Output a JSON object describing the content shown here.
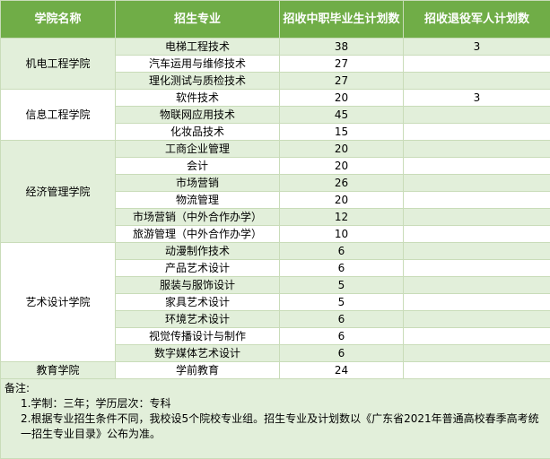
{
  "header": {
    "columns": [
      "学院名称",
      "招生专业",
      "招收中职毕业生计划数",
      "招收退役军人计划数"
    ]
  },
  "groups": [
    {
      "college": "机电工程学院",
      "rows": [
        {
          "major": "电梯工程技术",
          "plan": 38,
          "veteran": 3
        },
        {
          "major": "汽车运用与维修技术",
          "plan": 27
        },
        {
          "major": "理化测试与质检技术",
          "plan": 27
        }
      ]
    },
    {
      "college": "信息工程学院",
      "rows": [
        {
          "major": "软件技术",
          "plan": 20,
          "veteran": 3
        },
        {
          "major": "物联网应用技术",
          "plan": 45
        },
        {
          "major": "化妆品技术",
          "plan": 15
        }
      ]
    },
    {
      "college": "经济管理学院",
      "rows": [
        {
          "major": "工商企业管理",
          "plan": 20
        },
        {
          "major": "会计",
          "plan": 20
        },
        {
          "major": "市场营销",
          "plan": 26
        },
        {
          "major": "物流管理",
          "plan": 20
        },
        {
          "major": "市场营销（中外合作办学）",
          "plan": 12
        },
        {
          "major": "旅游管理（中外合作办学）",
          "plan": 10
        }
      ]
    },
    {
      "college": "艺术设计学院",
      "rows": [
        {
          "major": "动漫制作技术",
          "plan": 6
        },
        {
          "major": "产品艺术设计",
          "plan": 6
        },
        {
          "major": "服装与服饰设计",
          "plan": 5
        },
        {
          "major": "家具艺术设计",
          "plan": 5
        },
        {
          "major": "环境艺术设计",
          "plan": 6
        },
        {
          "major": "视觉传播设计与制作",
          "plan": 6
        },
        {
          "major": "数字媒体艺术设计",
          "plan": 6
        }
      ]
    },
    {
      "college": "教育学院",
      "rows": [
        {
          "major": "学前教育",
          "plan": 24
        }
      ]
    }
  ],
  "notes": {
    "title": "备注:",
    "items": [
      "1.学制：三年；学历层次：专科",
      "2.根据专业招生条件不同，我校设5个院校专业组。招生专业及计划数以《广东省2021年普通高校春季高考统一招生专业目录》公布为准。"
    ]
  }
}
